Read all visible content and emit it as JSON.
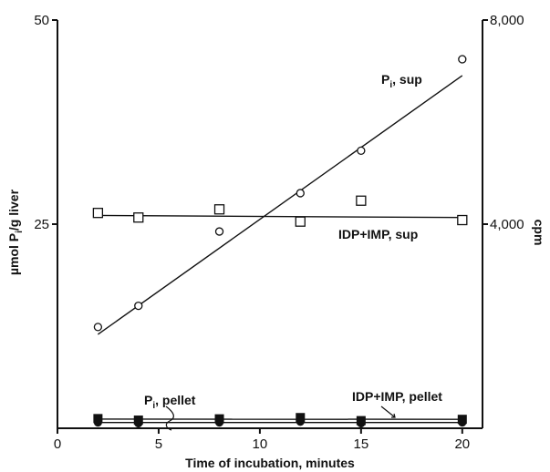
{
  "chart_data": {
    "type": "scatter",
    "xlabel": "Time of incubation, minutes",
    "ylabel_left": "µmol P",
    "ylabel_left_sub": "i",
    "ylabel_left_tail": "/g liver",
    "ylabel_right": "cpm",
    "xlim": [
      0,
      21
    ],
    "ylim_left": [
      0,
      50
    ],
    "ylim_right": [
      0,
      8000
    ],
    "x_ticks": [
      0,
      5,
      10,
      15,
      20
    ],
    "y_left_ticks": [
      25,
      50
    ],
    "y_right_ticks": [
      4000,
      8000
    ],
    "y_right_tick_labels": [
      "4,000",
      "8,000"
    ],
    "grid": false,
    "legend": "none",
    "series": [
      {
        "name": "Pi, sup",
        "label_main": "P",
        "label_sub": "i",
        "label_tail": ", sup",
        "axis": "left",
        "marker": "open-circle",
        "x": [
          2,
          4,
          8,
          12,
          15,
          20
        ],
        "y": [
          12.4,
          15.0,
          24.1,
          28.8,
          34.0,
          45.2
        ],
        "fit": [
          [
            2,
            11.5
          ],
          [
            20,
            43.2
          ]
        ]
      },
      {
        "name": "IDP+IMP, sup",
        "label_main": "IDP+IMP, sup",
        "axis": "right",
        "marker": "open-square",
        "x": [
          2,
          4,
          8,
          12,
          15,
          20
        ],
        "y": [
          4220,
          4130,
          4290,
          4050,
          4460,
          4080
        ],
        "fit": [
          [
            2,
            4170
          ],
          [
            20,
            4130
          ]
        ]
      },
      {
        "name": "Pi, pellet",
        "label_main": "P",
        "label_sub": "i",
        "label_tail": ", pellet",
        "axis": "left",
        "marker": "filled-circle",
        "x": [
          2,
          4,
          8,
          12,
          15,
          20
        ],
        "y": [
          0.7,
          0.6,
          0.7,
          0.8,
          0.6,
          0.7
        ],
        "fit": [
          [
            2,
            0.7
          ],
          [
            20,
            0.7
          ]
        ]
      },
      {
        "name": "IDP+IMP, pellet",
        "label_main": "IDP+IMP, pellet",
        "axis": "right",
        "marker": "filled-square",
        "x": [
          2,
          4,
          8,
          12,
          15,
          20
        ],
        "y": [
          190,
          160,
          185,
          210,
          150,
          175
        ],
        "fit": [
          [
            2,
            180
          ],
          [
            20,
            175
          ]
        ]
      }
    ]
  }
}
